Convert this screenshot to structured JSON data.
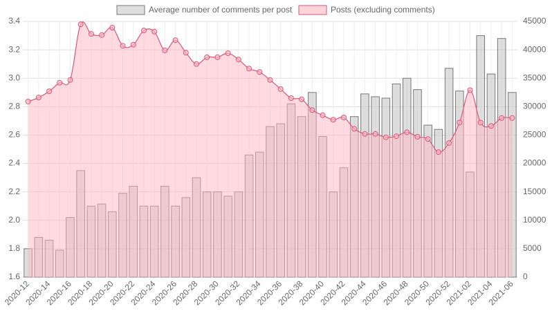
{
  "chart_data": {
    "type": "bar-line",
    "categories": [
      "2020-12",
      null,
      "2020-14",
      null,
      "2020-16",
      null,
      "2020-18",
      null,
      "2020-20",
      null,
      "2020-22",
      null,
      "2020-24",
      null,
      "2020-26",
      null,
      "2020-28",
      null,
      "2020-30",
      null,
      "2020-32",
      null,
      "2020-34",
      null,
      "2020-36",
      null,
      "2020-38",
      null,
      "2020-40",
      null,
      "2020-42",
      null,
      "2020-44",
      null,
      "2020-46",
      null,
      "2020-48",
      null,
      "2020-50",
      null,
      "2020-52",
      null,
      "2021-02",
      null,
      "2021-04",
      null,
      "2021-06"
    ],
    "series": [
      {
        "name": "Average number of comments per post",
        "type": "bar",
        "color": "#c8c8c8",
        "axis": "y",
        "values": [
          1.8,
          1.88,
          1.86,
          1.79,
          2.02,
          2.35,
          2.1,
          2.115,
          2.06,
          2.19,
          2.24,
          2.1,
          2.1,
          2.24,
          2.1,
          2.16,
          2.3,
          2.2,
          2.2,
          2.17,
          2.2,
          2.46,
          2.48,
          2.66,
          2.68,
          2.82,
          2.73,
          2.9,
          2.59,
          2.2,
          2.37,
          2.73,
          2.89,
          2.87,
          2.86,
          2.96,
          3.0,
          2.92,
          2.67,
          2.64,
          3.07,
          2.91,
          2.34,
          3.3,
          3.03,
          3.28,
          2.9
        ]
      },
      {
        "name": "Posts (excluding comments)",
        "type": "area",
        "color": "#d9577a",
        "axis": "y2",
        "values": [
          30900,
          31600,
          32700,
          34200,
          34700,
          44500,
          42800,
          42600,
          43900,
          40700,
          40900,
          43400,
          43200,
          39900,
          41700,
          39500,
          37500,
          38700,
          38700,
          39400,
          38300,
          36700,
          36100,
          34700,
          33100,
          31500,
          31300,
          29400,
          28500,
          27700,
          28100,
          26100,
          25200,
          25200,
          24600,
          24800,
          25500,
          24700,
          24300,
          22000,
          23600,
          27200,
          32900,
          27200,
          26600,
          28000,
          28000
        ]
      }
    ],
    "ylim": [
      1.6,
      3.4
    ],
    "yticks": [
      1.6,
      1.8,
      {
        "value": 2,
        "label": "2.0"
      },
      2.2,
      2.4,
      2.6,
      2.8,
      {
        "value": 3,
        "label": "3.0"
      },
      3.2,
      3.4
    ],
    "y2lim": [
      0,
      45000
    ],
    "y2ticks": [
      0,
      5000,
      10000,
      15000,
      20000,
      25000,
      30000,
      35000,
      40000,
      45000
    ],
    "grid": true,
    "legend": "top"
  }
}
